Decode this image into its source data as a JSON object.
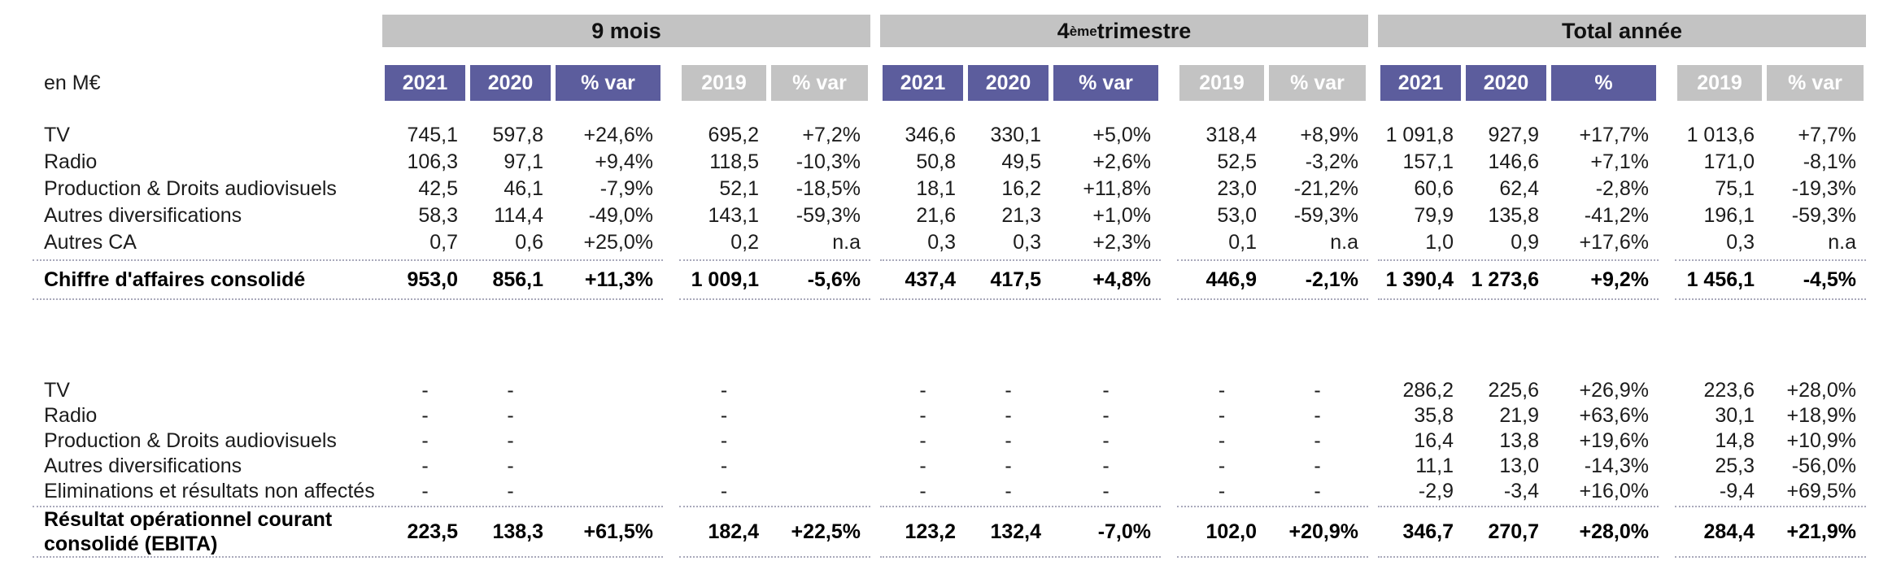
{
  "unit_label": "en M€",
  "colors": {
    "header_purple": "#5c5d9d",
    "band_gray": "#c3c3c3",
    "dotted": "#a9a9bb",
    "text": "#1c1c1c"
  },
  "groups": [
    {
      "title_main": "9 mois",
      "title_sup": "",
      "title_rest": "",
      "columns": [
        "2021",
        "2020",
        "% var",
        "2019",
        "% var"
      ]
    },
    {
      "title_main": "4",
      "title_sup": "ème",
      "title_rest": " trimestre",
      "columns": [
        "2021",
        "2020",
        "% var",
        "2019",
        "% var"
      ]
    },
    {
      "title_main": "Total année",
      "title_sup": "",
      "title_rest": "",
      "columns": [
        "2021",
        "2020",
        "%",
        "2019",
        "% var"
      ]
    }
  ],
  "sections": [
    {
      "rows": [
        {
          "label": "TV",
          "cells": [
            "745,1",
            "597,8",
            "+24,6%",
            "695,2",
            "+7,2%",
            "346,6",
            "330,1",
            "+5,0%",
            "318,4",
            "+8,9%",
            "1 091,8",
            "927,9",
            "+17,7%",
            "1 013,6",
            "+7,7%"
          ]
        },
        {
          "label": "Radio",
          "cells": [
            "106,3",
            "97,1",
            "+9,4%",
            "118,5",
            "-10,3%",
            "50,8",
            "49,5",
            "+2,6%",
            "52,5",
            "-3,2%",
            "157,1",
            "146,6",
            "+7,1%",
            "171,0",
            "-8,1%"
          ]
        },
        {
          "label": "Production & Droits audiovisuels",
          "cells": [
            "42,5",
            "46,1",
            "-7,9%",
            "52,1",
            "-18,5%",
            "18,1",
            "16,2",
            "+11,8%",
            "23,0",
            "-21,2%",
            "60,6",
            "62,4",
            "-2,8%",
            "75,1",
            "-19,3%"
          ]
        },
        {
          "label": "Autres diversifications",
          "cells": [
            "58,3",
            "114,4",
            "-49,0%",
            "143,1",
            "-59,3%",
            "21,6",
            "21,3",
            "+1,0%",
            "53,0",
            "-59,3%",
            "79,9",
            "135,8",
            "-41,2%",
            "196,1",
            "-59,3%"
          ]
        },
        {
          "label": "Autres CA",
          "cells": [
            "0,7",
            "0,6",
            "+25,0%",
            "0,2",
            "n.a",
            "0,3",
            "0,3",
            "+2,3%",
            "0,1",
            "n.a",
            "1,0",
            "0,9",
            "+17,6%",
            "0,3",
            "n.a"
          ]
        }
      ],
      "total": {
        "label": "Chiffre d'affaires consolidé",
        "cells": [
          "953,0",
          "856,1",
          "+11,3%",
          "1 009,1",
          "-5,6%",
          "437,4",
          "417,5",
          "+4,8%",
          "446,9",
          "-2,1%",
          "1 390,4",
          "1 273,6",
          "+9,2%",
          "1 456,1",
          "-4,5%"
        ]
      }
    },
    {
      "rows": [
        {
          "label": "TV",
          "cells": [
            "-",
            "-",
            "",
            "-",
            "",
            "-",
            "-",
            "-",
            "-",
            "-",
            "286,2",
            "225,6",
            "+26,9%",
            "223,6",
            "+28,0%"
          ]
        },
        {
          "label": "Radio",
          "cells": [
            "-",
            "-",
            "",
            "-",
            "",
            "-",
            "-",
            "-",
            "-",
            "-",
            "35,8",
            "21,9",
            "+63,6%",
            "30,1",
            "+18,9%"
          ]
        },
        {
          "label": "Production & Droits audiovisuels",
          "cells": [
            "-",
            "-",
            "",
            "-",
            "",
            "-",
            "-",
            "-",
            "-",
            "-",
            "16,4",
            "13,8",
            "+19,6%",
            "14,8",
            "+10,9%"
          ]
        },
        {
          "label": "Autres diversifications",
          "cells": [
            "-",
            "-",
            "",
            "-",
            "",
            "-",
            "-",
            "-",
            "-",
            "-",
            "11,1",
            "13,0",
            "-14,3%",
            "25,3",
            "-56,0%"
          ]
        },
        {
          "label": "Eliminations et résultats non affectés",
          "cells": [
            "-",
            "-",
            "",
            "-",
            "",
            "-",
            "-",
            "-",
            "-",
            "-",
            "-2,9",
            "-3,4",
            "+16,0%",
            "-9,4",
            "+69,5%"
          ]
        }
      ],
      "total": {
        "label": "Résultat opérationnel courant consolidé (EBITA)",
        "cells": [
          "223,5",
          "138,3",
          "+61,5%",
          "182,4",
          "+22,5%",
          "123,2",
          "132,4",
          "-7,0%",
          "102,0",
          "+20,9%",
          "346,7",
          "270,7",
          "+28,0%",
          "284,4",
          "+21,9%"
        ]
      }
    }
  ]
}
